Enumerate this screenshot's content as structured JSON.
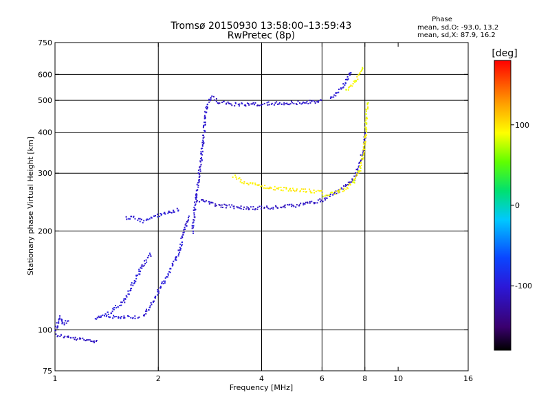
{
  "header": {
    "title": "Tromsø 20150930 13:58:00–13:59:43",
    "subtitle": "RwPretec (8p)"
  },
  "phase_info": {
    "label": "Phase",
    "line_o": "mean, sd,O: -93.0, 13.2",
    "line_x": "mean, sd,X:  87.9, 16.2"
  },
  "colorbar": {
    "unit_label": "[deg]",
    "tick_labels": [
      "100",
      "0",
      "-100"
    ],
    "tick_values": [
      100,
      0,
      -100
    ],
    "range": [
      -180,
      180
    ],
    "colormap": "rainbow: black → purple → blue → cyan → green → yellow → orange → red"
  },
  "chart_data": {
    "type": "scatter",
    "xlabel": "Frequency [MHz]",
    "ylabel": "Stationary phase Virtual Height [km]",
    "x_scale": "log",
    "y_scale": "log",
    "xlim": [
      1,
      16
    ],
    "ylim": [
      75,
      750
    ],
    "x_ticks": [
      1,
      2,
      4,
      6,
      8,
      10,
      16
    ],
    "x_tick_labels": [
      "1",
      "2",
      "4",
      "6",
      "8",
      "10",
      "16"
    ],
    "y_ticks": [
      75,
      100,
      200,
      300,
      400,
      500,
      600,
      750
    ],
    "y_tick_labels": [
      "75",
      "100",
      "200",
      "300",
      "400",
      "500",
      "600",
      "750"
    ],
    "grid_x": [
      2,
      4,
      6,
      8
    ],
    "grid_y": [
      100,
      200,
      300,
      400,
      500,
      600
    ],
    "point_color_encodes": "phase in degrees (colorbar)",
    "series": [
      {
        "kind": "trace",
        "phase": -110,
        "points": [
          [
            1.0,
            97
          ],
          [
            1.05,
            96
          ],
          [
            1.1,
            95
          ],
          [
            1.15,
            94
          ],
          [
            1.2,
            94
          ],
          [
            1.25,
            93
          ],
          [
            1.3,
            93
          ],
          [
            1.33,
            94
          ]
        ]
      },
      {
        "kind": "trace",
        "phase": -105,
        "points": [
          [
            1.0,
            100
          ],
          [
            1.03,
            110
          ],
          [
            1.05,
            104
          ],
          [
            1.07,
            106
          ],
          [
            1.1,
            108
          ]
        ]
      },
      {
        "kind": "trace",
        "phase": -100,
        "points": [
          [
            1.3,
            108
          ],
          [
            1.35,
            110
          ],
          [
            1.45,
            114
          ],
          [
            1.5,
            118
          ],
          [
            1.58,
            122
          ],
          [
            1.65,
            134
          ],
          [
            1.72,
            145
          ],
          [
            1.78,
            155
          ],
          [
            1.85,
            165
          ],
          [
            1.9,
            172
          ]
        ]
      },
      {
        "kind": "trace",
        "phase": -100,
        "points": [
          [
            1.4,
            110
          ],
          [
            1.5,
            110
          ],
          [
            1.6,
            110
          ],
          [
            1.7,
            110
          ],
          [
            1.76,
            110
          ]
        ]
      },
      {
        "kind": "trace",
        "phase": -102,
        "points": [
          [
            1.8,
            110
          ],
          [
            1.9,
            120
          ],
          [
            2.0,
            133
          ],
          [
            2.1,
            145
          ],
          [
            2.2,
            160
          ],
          [
            2.3,
            175
          ],
          [
            2.35,
            195
          ],
          [
            2.4,
            210
          ],
          [
            2.45,
            225
          ]
        ]
      },
      {
        "kind": "trace",
        "phase": -100,
        "points": [
          [
            1.6,
            220
          ],
          [
            1.7,
            220
          ],
          [
            1.8,
            215
          ],
          [
            1.9,
            220
          ],
          [
            2.0,
            225
          ],
          [
            2.1,
            228
          ],
          [
            2.2,
            230
          ],
          [
            2.3,
            235
          ]
        ]
      },
      {
        "kind": "trace",
        "phase": -105,
        "points": [
          [
            2.5,
            200
          ],
          [
            2.55,
            240
          ],
          [
            2.6,
            280
          ],
          [
            2.65,
            330
          ],
          [
            2.7,
            390
          ],
          [
            2.72,
            430
          ],
          [
            2.75,
            480
          ],
          [
            2.8,
            500
          ],
          [
            2.85,
            520
          ]
        ]
      },
      {
        "kind": "trace",
        "phase": -108,
        "points": [
          [
            2.9,
            510
          ],
          [
            3.0,
            495
          ],
          [
            3.2,
            490
          ],
          [
            3.5,
            488
          ],
          [
            4.0,
            490
          ],
          [
            4.5,
            492
          ],
          [
            5.0,
            494
          ],
          [
            5.5,
            496
          ],
          [
            6.0,
            500
          ]
        ]
      },
      {
        "kind": "trace",
        "phase": -110,
        "points": [
          [
            2.6,
            250
          ],
          [
            2.8,
            245
          ],
          [
            3.0,
            240
          ],
          [
            3.3,
            238
          ],
          [
            3.6,
            236
          ],
          [
            4.0,
            236
          ],
          [
            4.5,
            238
          ],
          [
            5.0,
            240
          ],
          [
            5.5,
            245
          ],
          [
            6.0,
            250
          ],
          [
            6.5,
            262
          ],
          [
            7.0,
            275
          ],
          [
            7.4,
            290
          ],
          [
            7.7,
            320
          ],
          [
            7.9,
            360
          ],
          [
            8.0,
            400
          ]
        ]
      },
      {
        "kind": "trace",
        "phase": 95,
        "points": [
          [
            3.3,
            295
          ],
          [
            3.5,
            285
          ],
          [
            3.8,
            278
          ],
          [
            4.2,
            272
          ],
          [
            4.6,
            270
          ],
          [
            5.0,
            268
          ],
          [
            5.5,
            266
          ],
          [
            6.0,
            265
          ]
        ]
      },
      {
        "kind": "trace",
        "phase": 90,
        "points": [
          [
            6.0,
            258
          ],
          [
            6.5,
            262
          ],
          [
            7.0,
            270
          ],
          [
            7.4,
            285
          ],
          [
            7.7,
            310
          ],
          [
            7.9,
            350
          ],
          [
            8.0,
            400
          ],
          [
            8.05,
            450
          ],
          [
            8.1,
            500
          ]
        ]
      },
      {
        "kind": "trace",
        "phase": -100,
        "points": [
          [
            6.3,
            510
          ],
          [
            6.6,
            530
          ],
          [
            6.9,
            560
          ],
          [
            7.1,
            590
          ],
          [
            7.3,
            620
          ]
        ]
      },
      {
        "kind": "trace",
        "phase": 90,
        "points": [
          [
            7.0,
            540
          ],
          [
            7.3,
            560
          ],
          [
            7.6,
            590
          ],
          [
            7.8,
            620
          ],
          [
            7.9,
            640
          ]
        ]
      }
    ]
  }
}
